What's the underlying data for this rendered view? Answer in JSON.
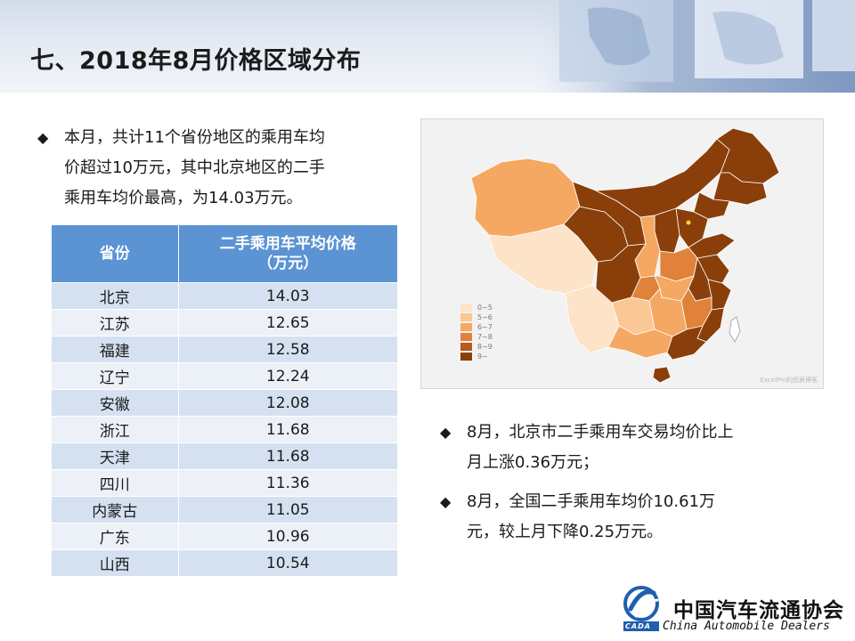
{
  "slide": {
    "title": "七、2018年8月价格区域分布"
  },
  "bullets_left": [
    {
      "marker": "◆",
      "lines": [
        "本月，共计11个省份地区的乘用车均",
        "价超过10万元，其中北京地区的二手",
        "乘用车均价最高，为14.03万元。"
      ]
    }
  ],
  "table": {
    "headers": [
      "省份",
      "二手乘用车平均价格（万元）"
    ],
    "header_lines": [
      "二手乘用车平均价格",
      "（万元）"
    ],
    "rows": [
      [
        "北京",
        "14.03"
      ],
      [
        "江苏",
        "12.65"
      ],
      [
        "福建",
        "12.58"
      ],
      [
        "辽宁",
        "12.24"
      ],
      [
        "安徽",
        "12.08"
      ],
      [
        "浙江",
        "11.68"
      ],
      [
        "天津",
        "11.68"
      ],
      [
        "四川",
        "11.36"
      ],
      [
        "内蒙古",
        "11.05"
      ],
      [
        "广东",
        "10.96"
      ],
      [
        "山西",
        "10.54"
      ]
    ]
  },
  "map": {
    "legend": [
      {
        "label": "0~5",
        "color": "#fde3c7"
      },
      {
        "label": "5~6",
        "color": "#fbc795"
      },
      {
        "label": "6~7",
        "color": "#f5a862"
      },
      {
        "label": "7~8",
        "color": "#e0823a"
      },
      {
        "label": "8~9",
        "color": "#b65a1c"
      },
      {
        "label": "9~",
        "color": "#8a3f0b"
      }
    ],
    "watermark": "ExcelPro的图表博客"
  },
  "bullets_right": [
    {
      "marker": "◆",
      "lines": [
        "8月，北京市二手乘用车交易均价比上",
        "月上涨0.36万元；"
      ]
    },
    {
      "marker": "◆",
      "lines": [
        "8月，全国二手乘用车均价10.61万",
        "元，较上月下降0.25万元。"
      ]
    }
  ],
  "logo": {
    "cn": "中国汽车流通协会",
    "en": "China  Automobile Dealers",
    "abbr": "CADA"
  },
  "colors": {
    "table_header": "#5b93d3",
    "table_row_odd": "#d5e1f1",
    "table_row_even": "#ecf1f8",
    "map_dark": "#8a3f0b",
    "logo_blue": "#1f5fae"
  }
}
